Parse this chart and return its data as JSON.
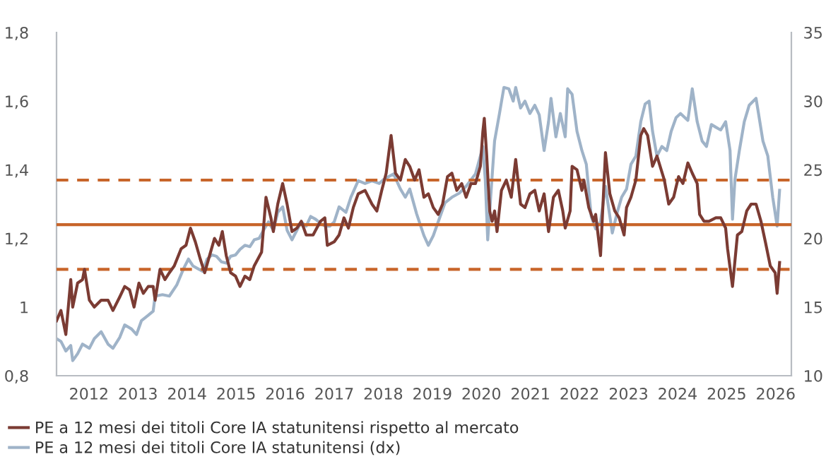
{
  "chart_data": {
    "type": "line",
    "xlim": [
      2011.84,
      2026.82
    ],
    "xticks": [
      {
        "value": 2012.5,
        "label": "2012"
      },
      {
        "value": 2013.5,
        "label": "2013"
      },
      {
        "value": 2014.5,
        "label": "2014"
      },
      {
        "value": 2015.5,
        "label": "2015"
      },
      {
        "value": 2016.5,
        "label": "2016"
      },
      {
        "value": 2017.5,
        "label": "2017"
      },
      {
        "value": 2018.5,
        "label": "2018"
      },
      {
        "value": 2019.5,
        "label": "2019"
      },
      {
        "value": 2020.5,
        "label": "2020"
      },
      {
        "value": 2021.5,
        "label": "2021"
      },
      {
        "value": 2022.5,
        "label": "2022"
      },
      {
        "value": 2023.5,
        "label": "2023"
      },
      {
        "value": 2024.5,
        "label": "2024"
      },
      {
        "value": 2025.5,
        "label": "2025"
      },
      {
        "value": 2026.5,
        "label": "2026"
      }
    ],
    "ylim": [
      0.8,
      1.8
    ],
    "yticks": [
      {
        "value": 0.8,
        "label": "0,8"
      },
      1,
      {
        "value": 1.2,
        "label": "1,2"
      },
      {
        "value": 1.4,
        "label": "1,4"
      },
      {
        "value": 1.6,
        "label": "1,6"
      },
      {
        "value": 1.8,
        "label": "1,8"
      }
    ],
    "y2lim": [
      10,
      35
    ],
    "y2ticks": [
      10,
      15,
      20,
      25,
      30,
      35
    ],
    "grid": false,
    "legend": "bottom",
    "line_style": "solid",
    "marker": "none",
    "ref_lines": [
      {
        "axis": "y",
        "value": 1.24,
        "color": "#c8652a",
        "line_style": "solid"
      },
      {
        "axis": "y",
        "value": 1.37,
        "color": "#c8652a",
        "line_style": "dashed"
      },
      {
        "axis": "y",
        "value": 1.11,
        "color": "#c8652a",
        "line_style": "dashed"
      }
    ],
    "series": [
      {
        "name": "PE a 12 mesi dei titoli Core IA statunitensi rispetto al mercato",
        "color": "#7b3b33",
        "axis": "y",
        "x": [
          2011.84,
          2011.93,
          2012.03,
          2012.13,
          2012.17,
          2012.27,
          2012.37,
          2012.41,
          2012.51,
          2012.61,
          2012.75,
          2012.89,
          2012.99,
          2013.13,
          2013.23,
          2013.33,
          2013.42,
          2013.52,
          2013.61,
          2013.71,
          2013.81,
          2013.85,
          2013.95,
          2014.05,
          2014.14,
          2014.24,
          2014.38,
          2014.48,
          2014.57,
          2014.67,
          2014.77,
          2014.86,
          2014.96,
          2015.06,
          2015.15,
          2015.22,
          2015.3,
          2015.39,
          2015.49,
          2015.58,
          2015.68,
          2015.78,
          2015.87,
          2016.02,
          2016.11,
          2016.21,
          2016.26,
          2016.35,
          2016.45,
          2016.54,
          2016.64,
          2016.74,
          2016.83,
          2016.93,
          2017.07,
          2017.22,
          2017.31,
          2017.36,
          2017.5,
          2017.6,
          2017.7,
          2017.79,
          2017.89,
          2017.99,
          2018.13,
          2018.27,
          2018.37,
          2018.47,
          2018.56,
          2018.66,
          2018.75,
          2018.85,
          2018.95,
          2019.04,
          2019.14,
          2019.23,
          2019.33,
          2019.42,
          2019.52,
          2019.62,
          2019.71,
          2019.81,
          2019.9,
          2020.0,
          2020.1,
          2020.19,
          2020.29,
          2020.38,
          2020.48,
          2020.53,
          2020.56,
          2020.61,
          2020.67,
          2020.72,
          2020.77,
          2020.82,
          2020.91,
          2021.01,
          2021.11,
          2021.2,
          2021.3,
          2021.39,
          2021.49,
          2021.59,
          2021.68,
          2021.78,
          2021.87,
          2021.97,
          2022.07,
          2022.16,
          2022.21,
          2022.31,
          2022.35,
          2022.45,
          2022.55,
          2022.59,
          2022.69,
          2022.79,
          2022.83,
          2022.93,
          2023.03,
          2023.12,
          2023.22,
          2023.31,
          2023.41,
          2023.46,
          2023.55,
          2023.65,
          2023.75,
          2023.81,
          2023.89,
          2023.99,
          2024.08,
          2024.23,
          2024.32,
          2024.42,
          2024.52,
          2024.61,
          2024.71,
          2024.8,
          2024.9,
          2024.95,
          2025.04,
          2025.14,
          2025.28,
          2025.38,
          2025.48,
          2025.52,
          2025.62,
          2025.72,
          2025.81,
          2025.91,
          2026.0,
          2026.1,
          2026.2,
          2026.29,
          2026.39,
          2026.49,
          2026.53,
          2026.58
        ],
        "values": [
          0.96,
          0.99,
          0.92,
          1.08,
          1.0,
          1.07,
          1.08,
          1.11,
          1.02,
          1.0,
          1.02,
          1.02,
          0.99,
          1.03,
          1.06,
          1.05,
          1.0,
          1.07,
          1.04,
          1.06,
          1.06,
          1.02,
          1.11,
          1.08,
          1.1,
          1.12,
          1.17,
          1.18,
          1.23,
          1.19,
          1.14,
          1.1,
          1.15,
          1.2,
          1.18,
          1.22,
          1.15,
          1.1,
          1.09,
          1.06,
          1.09,
          1.08,
          1.12,
          1.16,
          1.32,
          1.26,
          1.22,
          1.3,
          1.36,
          1.3,
          1.22,
          1.23,
          1.25,
          1.21,
          1.21,
          1.25,
          1.26,
          1.18,
          1.19,
          1.21,
          1.26,
          1.23,
          1.29,
          1.33,
          1.34,
          1.3,
          1.28,
          1.34,
          1.39,
          1.5,
          1.39,
          1.37,
          1.43,
          1.41,
          1.37,
          1.4,
          1.32,
          1.33,
          1.29,
          1.27,
          1.3,
          1.38,
          1.39,
          1.34,
          1.36,
          1.32,
          1.36,
          1.36,
          1.41,
          1.51,
          1.55,
          1.44,
          1.28,
          1.25,
          1.28,
          1.22,
          1.34,
          1.37,
          1.32,
          1.43,
          1.3,
          1.29,
          1.33,
          1.34,
          1.28,
          1.33,
          1.22,
          1.32,
          1.34,
          1.28,
          1.23,
          1.28,
          1.41,
          1.4,
          1.34,
          1.37,
          1.29,
          1.25,
          1.27,
          1.15,
          1.45,
          1.33,
          1.28,
          1.26,
          1.21,
          1.29,
          1.32,
          1.37,
          1.5,
          1.52,
          1.5,
          1.41,
          1.44,
          1.37,
          1.3,
          1.32,
          1.38,
          1.36,
          1.42,
          1.39,
          1.36,
          1.27,
          1.25,
          1.25,
          1.26,
          1.26,
          1.23,
          1.17,
          1.06,
          1.21,
          1.22,
          1.28,
          1.3,
          1.3,
          1.25,
          1.19,
          1.12,
          1.1,
          1.04,
          1.13
        ]
      },
      {
        "name": "PE a 12 mesi dei titoli Core IA statunitensi (dx)",
        "color": "#9fb3c8",
        "axis": "y2",
        "x": [
          2011.84,
          2011.93,
          2012.03,
          2012.13,
          2012.17,
          2012.27,
          2012.37,
          2012.51,
          2012.61,
          2012.75,
          2012.89,
          2012.99,
          2013.13,
          2013.23,
          2013.37,
          2013.47,
          2013.57,
          2013.71,
          2013.81,
          2013.85,
          2014.0,
          2014.14,
          2014.29,
          2014.43,
          2014.53,
          2014.62,
          2014.72,
          2014.82,
          2014.91,
          2015.01,
          2015.1,
          2015.2,
          2015.3,
          2015.39,
          2015.49,
          2015.58,
          2015.68,
          2015.78,
          2015.87,
          2015.97,
          2016.06,
          2016.16,
          2016.26,
          2016.35,
          2016.45,
          2016.54,
          2016.64,
          2016.74,
          2016.83,
          2016.93,
          2017.02,
          2017.12,
          2017.22,
          2017.31,
          2017.41,
          2017.5,
          2017.6,
          2017.74,
          2017.84,
          2017.99,
          2018.13,
          2018.27,
          2018.42,
          2018.51,
          2018.61,
          2018.71,
          2018.85,
          2018.95,
          2019.04,
          2019.18,
          2019.33,
          2019.42,
          2019.52,
          2019.62,
          2019.76,
          2019.9,
          2020.05,
          2020.19,
          2020.38,
          2020.48,
          2020.53,
          2020.58,
          2020.63,
          2020.69,
          2020.77,
          2020.87,
          2020.96,
          2021.06,
          2021.15,
          2021.2,
          2021.3,
          2021.39,
          2021.49,
          2021.59,
          2021.68,
          2021.78,
          2021.87,
          2021.92,
          2022.02,
          2022.11,
          2022.21,
          2022.26,
          2022.35,
          2022.45,
          2022.55,
          2022.64,
          2022.74,
          2022.83,
          2022.93,
          2023.03,
          2023.12,
          2023.17,
          2023.27,
          2023.36,
          2023.46,
          2023.55,
          2023.65,
          2023.75,
          2023.84,
          2023.92,
          2023.99,
          2024.08,
          2024.18,
          2024.28,
          2024.37,
          2024.47,
          2024.56,
          2024.71,
          2024.8,
          2024.9,
          2025.0,
          2025.09,
          2025.19,
          2025.28,
          2025.38,
          2025.48,
          2025.57,
          2025.62,
          2025.67,
          2025.76,
          2025.86,
          2025.96,
          2026.1,
          2026.15,
          2026.24,
          2026.34,
          2026.44,
          2026.53,
          2026.58
        ],
        "values": [
          12.7,
          12.5,
          11.8,
          12.2,
          11.1,
          11.6,
          12.3,
          12.0,
          12.7,
          13.2,
          12.3,
          12.0,
          12.8,
          13.7,
          13.4,
          13.0,
          14.0,
          14.4,
          14.7,
          15.8,
          15.9,
          15.8,
          16.6,
          17.8,
          18.5,
          18.0,
          17.8,
          17.6,
          18.5,
          18.8,
          18.7,
          18.3,
          18.2,
          18.7,
          18.8,
          19.2,
          19.5,
          19.4,
          19.9,
          20.0,
          20.6,
          21.2,
          20.6,
          21.9,
          22.3,
          20.6,
          19.9,
          20.6,
          21.2,
          20.9,
          21.6,
          21.4,
          21.1,
          20.9,
          20.9,
          21.2,
          22.3,
          21.9,
          23.0,
          24.2,
          24.0,
          24.2,
          24.0,
          24.3,
          24.5,
          24.7,
          23.6,
          23.0,
          23.6,
          21.8,
          20.2,
          19.5,
          20.2,
          21.2,
          22.6,
          23.0,
          23.3,
          23.8,
          24.7,
          26.0,
          26.7,
          24.3,
          19.9,
          23.0,
          27.1,
          29.1,
          31.0,
          30.9,
          30.0,
          31.0,
          29.5,
          30.0,
          29.1,
          29.7,
          29.0,
          26.4,
          28.5,
          30.2,
          27.4,
          29.1,
          27.4,
          30.9,
          30.5,
          27.8,
          26.4,
          25.4,
          21.6,
          20.7,
          21.2,
          23.8,
          21.6,
          20.4,
          21.9,
          23.0,
          23.6,
          25.4,
          26.0,
          28.5,
          29.8,
          30.0,
          27.8,
          26.0,
          26.7,
          26.4,
          27.8,
          28.8,
          29.1,
          28.6,
          30.9,
          28.5,
          27.1,
          26.7,
          28.3,
          28.1,
          27.9,
          28.5,
          26.4,
          21.4,
          24.3,
          26.4,
          28.5,
          29.7,
          30.2,
          29.1,
          27.1,
          26.0,
          23.0,
          20.9,
          23.5
        ]
      }
    ]
  }
}
